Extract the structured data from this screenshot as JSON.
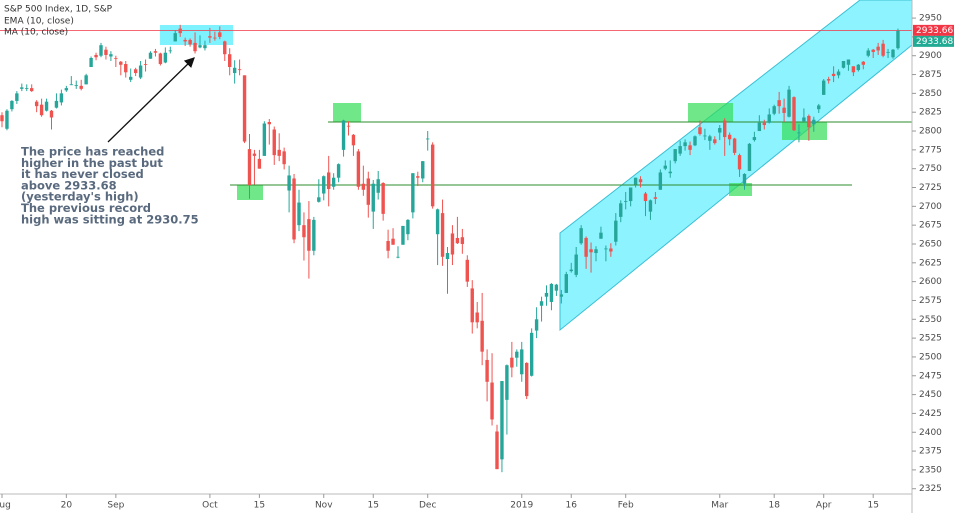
{
  "chart_data": {
    "type": "candlestick",
    "title": "S&P 500 Index, 1D, S&P",
    "indicators": [
      "EMA (10, close)",
      "MA (10, close)"
    ],
    "annotation": [
      "The price has reached",
      "higher in the past but",
      "it has never closed",
      "above 2933.68",
      "(yesterday's high)",
      "The previous record",
      "high was sitting at 2930.75"
    ],
    "up_color": "#26a69a",
    "down_color": "#ef5350",
    "ylim": [
      2318,
      2974
    ],
    "yticks": [
      2325,
      2350,
      2375,
      2400,
      2425,
      2450,
      2475,
      2500,
      2525,
      2550,
      2575,
      2600,
      2625,
      2650,
      2675,
      2700,
      2725,
      2750,
      2775,
      2800,
      2825,
      2850,
      2875,
      2900,
      2925,
      2950
    ],
    "price_tags": [
      {
        "value": 2933.66,
        "color": "#f23645"
      },
      {
        "value": 2933.68,
        "color": "#22ab94"
      }
    ],
    "categories": [
      "Aug",
      null,
      null,
      null,
      null,
      null,
      null,
      null,
      null,
      null,
      null,
      null,
      null,
      "20",
      null,
      null,
      null,
      null,
      null,
      null,
      null,
      null,
      null,
      "Sep",
      null,
      null,
      null,
      null,
      null,
      null,
      null,
      null,
      null,
      null,
      null,
      null,
      null,
      null,
      null,
      null,
      null,
      null,
      "Oct",
      null,
      null,
      null,
      null,
      null,
      null,
      null,
      null,
      null,
      "15",
      null,
      null,
      null,
      null,
      null,
      null,
      null,
      null,
      null,
      null,
      null,
      null,
      "Nov",
      null,
      null,
      null,
      null,
      null,
      null,
      null,
      null,
      null,
      "15",
      null,
      null,
      null,
      null,
      null,
      null,
      null,
      null,
      null,
      null,
      "Dec",
      null,
      null,
      null,
      null,
      null,
      null,
      null,
      null,
      null,
      null,
      null,
      null,
      null,
      null,
      null,
      null,
      null,
      null,
      "2019",
      null,
      null,
      null,
      null,
      null,
      null,
      null,
      null,
      null,
      "16",
      null,
      null,
      null,
      null,
      null,
      null,
      null,
      null,
      null,
      null,
      "Feb",
      null,
      null,
      null,
      null,
      null,
      null,
      null,
      null,
      null,
      null,
      null,
      null,
      null,
      null,
      null,
      null,
      null,
      null,
      "Mar",
      null,
      null,
      null,
      null,
      null,
      null,
      null,
      null,
      null,
      null,
      "18",
      null,
      null,
      null,
      null,
      null,
      null,
      null,
      null,
      null,
      "Apr",
      null,
      null,
      null,
      null,
      null,
      null,
      null,
      null,
      null,
      "15",
      null,
      null,
      null,
      null,
      null
    ],
    "candles": [
      [
        2821,
        2825,
        2805,
        2813
      ],
      [
        2803,
        2829,
        2801,
        2827
      ],
      [
        2829,
        2841,
        2826,
        2840
      ],
      [
        2840,
        2853,
        2836,
        2850
      ],
      [
        2856,
        2863,
        2853,
        2858
      ],
      [
        2856,
        2862,
        2853,
        2857
      ],
      [
        2857,
        2862,
        2852,
        2853
      ],
      [
        2839,
        2841,
        2825,
        2833
      ],
      [
        2835,
        2843,
        2819,
        2821
      ],
      [
        2827,
        2843,
        2826,
        2839
      ],
      [
        2827,
        2828,
        2802,
        2818
      ],
      [
        2831,
        2850,
        2830,
        2840
      ],
      [
        2838,
        2855,
        2834,
        2850
      ],
      [
        2854,
        2860,
        2852,
        2857
      ],
      [
        2861,
        2873,
        2861,
        2862
      ],
      [
        2860,
        2867,
        2856,
        2861
      ],
      [
        2860,
        2868,
        2854,
        2856
      ],
      [
        2862,
        2876,
        2862,
        2874
      ],
      [
        2885,
        2899,
        2885,
        2897
      ],
      [
        2901,
        2904,
        2894,
        2898
      ],
      [
        2900,
        2917,
        2898,
        2914
      ],
      [
        2908,
        2912,
        2895,
        2901
      ],
      [
        2899,
        2906,
        2893,
        2902
      ],
      [
        2897,
        2900,
        2885,
        2896
      ],
      [
        2892,
        2893,
        2874,
        2888
      ],
      [
        2889,
        2893,
        2871,
        2878
      ],
      [
        2868,
        2883,
        2865,
        2872
      ],
      [
        2882,
        2884,
        2873,
        2877
      ],
      [
        2871,
        2893,
        2869,
        2887
      ],
      [
        2889,
        2895,
        2879,
        2888
      ],
      [
        2896,
        2906,
        2896,
        2904
      ],
      [
        2906,
        2909,
        2899,
        2904
      ],
      [
        2903,
        2904,
        2887,
        2889
      ],
      [
        2891,
        2911,
        2890,
        2904
      ],
      [
        2906,
        2912,
        2903,
        2907
      ],
      [
        2919,
        2934,
        2919,
        2930
      ],
      [
        2936,
        2941,
        2925,
        2930
      ],
      [
        2921,
        2924,
        2913,
        2919
      ],
      [
        2921,
        2923,
        2912,
        2915
      ],
      [
        2917,
        2931,
        2903,
        2906
      ],
      [
        2911,
        2927,
        2910,
        2914
      ],
      [
        2910,
        2920,
        2907,
        2914
      ],
      [
        2926,
        2937,
        2917,
        2924
      ],
      [
        2924,
        2932,
        2920,
        2923
      ],
      [
        2931,
        2939,
        2922,
        2925
      ],
      [
        2919,
        2920,
        2893,
        2902
      ],
      [
        2902,
        2910,
        2874,
        2885
      ],
      [
        2877,
        2894,
        2863,
        2884
      ],
      [
        2882,
        2895,
        2874,
        2881
      ],
      [
        2874,
        2874,
        2784,
        2786
      ],
      [
        2776,
        2796,
        2710,
        2728
      ],
      [
        2770,
        2775,
        2729,
        2767
      ],
      [
        2763,
        2775,
        2750,
        2750
      ],
      [
        2767,
        2813,
        2767,
        2810
      ],
      [
        2812,
        2816,
        2782,
        2809
      ],
      [
        2802,
        2806,
        2755,
        2768
      ],
      [
        2775,
        2797,
        2760,
        2767
      ],
      [
        2773,
        2778,
        2749,
        2756
      ],
      [
        2721,
        2754,
        2692,
        2741
      ],
      [
        2737,
        2743,
        2651,
        2656
      ],
      [
        2675,
        2722,
        2667,
        2705
      ],
      [
        2675,
        2692,
        2628,
        2659
      ],
      [
        2683,
        2707,
        2604,
        2641
      ],
      [
        2641,
        2686,
        2635,
        2682
      ],
      [
        2706,
        2736,
        2705,
        2712
      ],
      [
        2717,
        2741,
        2708,
        2740
      ],
      [
        2745,
        2767,
        2700,
        2723
      ],
      [
        2726,
        2744,
        2722,
        2738
      ],
      [
        2738,
        2757,
        2732,
        2756
      ],
      [
        2775,
        2815,
        2766,
        2814
      ],
      [
        2807,
        2813,
        2794,
        2806
      ],
      [
        2795,
        2796,
        2767,
        2781
      ],
      [
        2773,
        2776,
        2722,
        2726
      ],
      [
        2730,
        2754,
        2714,
        2722
      ],
      [
        2737,
        2746,
        2685,
        2702
      ],
      [
        2693,
        2735,
        2670,
        2730
      ],
      [
        2718,
        2747,
        2709,
        2736
      ],
      [
        2731,
        2732,
        2681,
        2690
      ],
      [
        2654,
        2669,
        2631,
        2641
      ],
      [
        2657,
        2671,
        2649,
        2649
      ],
      [
        2633,
        2647,
        2631,
        2633
      ],
      [
        2649,
        2674,
        2649,
        2674
      ],
      [
        2663,
        2683,
        2655,
        2682
      ],
      [
        2692,
        2744,
        2684,
        2744
      ],
      [
        2740,
        2746,
        2727,
        2738
      ],
      [
        2737,
        2760,
        2732,
        2760
      ],
      [
        2790,
        2800,
        2774,
        2790
      ],
      [
        2782,
        2785,
        2697,
        2700
      ],
      [
        2663,
        2697,
        2622,
        2696
      ],
      [
        2691,
        2709,
        2621,
        2633
      ],
      [
        2630,
        2646,
        2584,
        2638
      ],
      [
        2664,
        2675,
        2622,
        2636
      ],
      [
        2658,
        2686,
        2650,
        2651
      ],
      [
        2659,
        2670,
        2637,
        2650
      ],
      [
        2629,
        2635,
        2593,
        2600
      ],
      [
        2591,
        2602,
        2531,
        2546
      ],
      [
        2559,
        2573,
        2538,
        2546
      ],
      [
        2548,
        2585,
        2489,
        2507
      ],
      [
        2496,
        2510,
        2441,
        2467
      ],
      [
        2466,
        2505,
        2409,
        2417
      ],
      [
        2401,
        2410,
        2351,
        2351
      ],
      [
        2364,
        2467,
        2347,
        2468
      ],
      [
        2443,
        2490,
        2397,
        2489
      ],
      [
        2499,
        2520,
        2473,
        2486
      ],
      [
        2499,
        2510,
        2487,
        2507
      ],
      [
        2477,
        2520,
        2467,
        2510
      ],
      [
        2492,
        2493,
        2444,
        2448
      ],
      [
        2475,
        2538,
        2474,
        2532
      ],
      [
        2535,
        2566,
        2525,
        2550
      ],
      [
        2568,
        2580,
        2547,
        2574
      ],
      [
        2580,
        2595,
        2568,
        2585
      ],
      [
        2573,
        2598,
        2562,
        2597
      ],
      [
        2588,
        2597,
        2581,
        2596
      ],
      [
        2580,
        2589,
        2571,
        2583
      ],
      [
        2585,
        2613,
        2585,
        2610
      ],
      [
        2614,
        2625,
        2612,
        2616
      ],
      [
        2609,
        2646,
        2606,
        2636
      ],
      [
        2651,
        2675,
        2649,
        2671
      ],
      [
        2658,
        2660,
        2617,
        2633
      ],
      [
        2643,
        2652,
        2612,
        2639
      ],
      [
        2638,
        2647,
        2627,
        2643
      ],
      [
        2657,
        2673,
        2657,
        2665
      ],
      [
        2644,
        2648,
        2627,
        2644
      ],
      [
        2644,
        2651,
        2633,
        2640
      ],
      [
        2653,
        2691,
        2648,
        2681
      ],
      [
        2686,
        2708,
        2679,
        2704
      ],
      [
        2707,
        2719,
        2696,
        2707
      ],
      [
        2707,
        2725,
        2700,
        2725
      ],
      [
        2729,
        2738,
        2725,
        2738
      ],
      [
        2736,
        2740,
        2725,
        2732
      ],
      [
        2717,
        2719,
        2687,
        2707
      ],
      [
        2693,
        2709,
        2682,
        2708
      ],
      [
        2712,
        2719,
        2703,
        2710
      ],
      [
        2722,
        2749,
        2722,
        2745
      ],
      [
        2750,
        2761,
        2748,
        2754
      ],
      [
        2744,
        2761,
        2738,
        2746
      ],
      [
        2760,
        2776,
        2757,
        2776
      ],
      [
        2770,
        2787,
        2767,
        2780
      ],
      [
        2780,
        2789,
        2774,
        2785
      ],
      [
        2781,
        2786,
        2768,
        2775
      ],
      [
        2781,
        2794,
        2780,
        2793
      ],
      [
        2805,
        2814,
        2794,
        2796
      ],
      [
        2793,
        2803,
        2788,
        2794
      ],
      [
        2787,
        2795,
        2775,
        2793
      ],
      [
        2789,
        2793,
        2782,
        2784
      ],
      [
        2798,
        2808,
        2788,
        2804
      ],
      [
        2814,
        2817,
        2767,
        2792
      ],
      [
        2795,
        2798,
        2781,
        2789
      ],
      [
        2790,
        2791,
        2768,
        2771
      ],
      [
        2768,
        2770,
        2739,
        2749
      ],
      [
        2730,
        2744,
        2722,
        2743
      ],
      [
        2747,
        2784,
        2747,
        2783
      ],
      [
        2788,
        2799,
        2786,
        2792
      ],
      [
        2800,
        2821,
        2800,
        2811
      ],
      [
        2811,
        2815,
        2802,
        2808
      ],
      [
        2811,
        2830,
        2810,
        2822
      ],
      [
        2823,
        2835,
        2821,
        2833
      ],
      [
        2841,
        2852,
        2823,
        2833
      ],
      [
        2831,
        2843,
        2812,
        2824
      ],
      [
        2819,
        2860,
        2818,
        2855
      ],
      [
        2845,
        2846,
        2800,
        2801
      ],
      [
        2797,
        2809,
        2785,
        2798
      ],
      [
        2813,
        2830,
        2812,
        2818
      ],
      [
        2820,
        2822,
        2787,
        2805
      ],
      [
        2809,
        2819,
        2799,
        2815
      ],
      [
        2829,
        2836,
        2824,
        2834
      ],
      [
        2848,
        2869,
        2848,
        2867
      ],
      [
        2869,
        2872,
        2863,
        2867
      ],
      [
        2876,
        2886,
        2865,
        2873
      ],
      [
        2874,
        2882,
        2870,
        2879
      ],
      [
        2884,
        2893,
        2883,
        2893
      ],
      [
        2888,
        2895,
        2880,
        2895
      ],
      [
        2886,
        2886,
        2873,
        2878
      ],
      [
        2881,
        2889,
        2879,
        2888
      ],
      [
        2892,
        2893,
        2882,
        2888
      ],
      [
        2900,
        2910,
        2898,
        2907
      ],
      [
        2908,
        2909,
        2897,
        2905
      ],
      [
        2912,
        2917,
        2901,
        2907
      ],
      [
        2916,
        2921,
        2898,
        2900
      ],
      [
        2904,
        2909,
        2897,
        2905
      ],
      [
        2898,
        2909,
        2896,
        2908
      ],
      [
        2910,
        2936,
        2908,
        2933
      ]
    ]
  }
}
